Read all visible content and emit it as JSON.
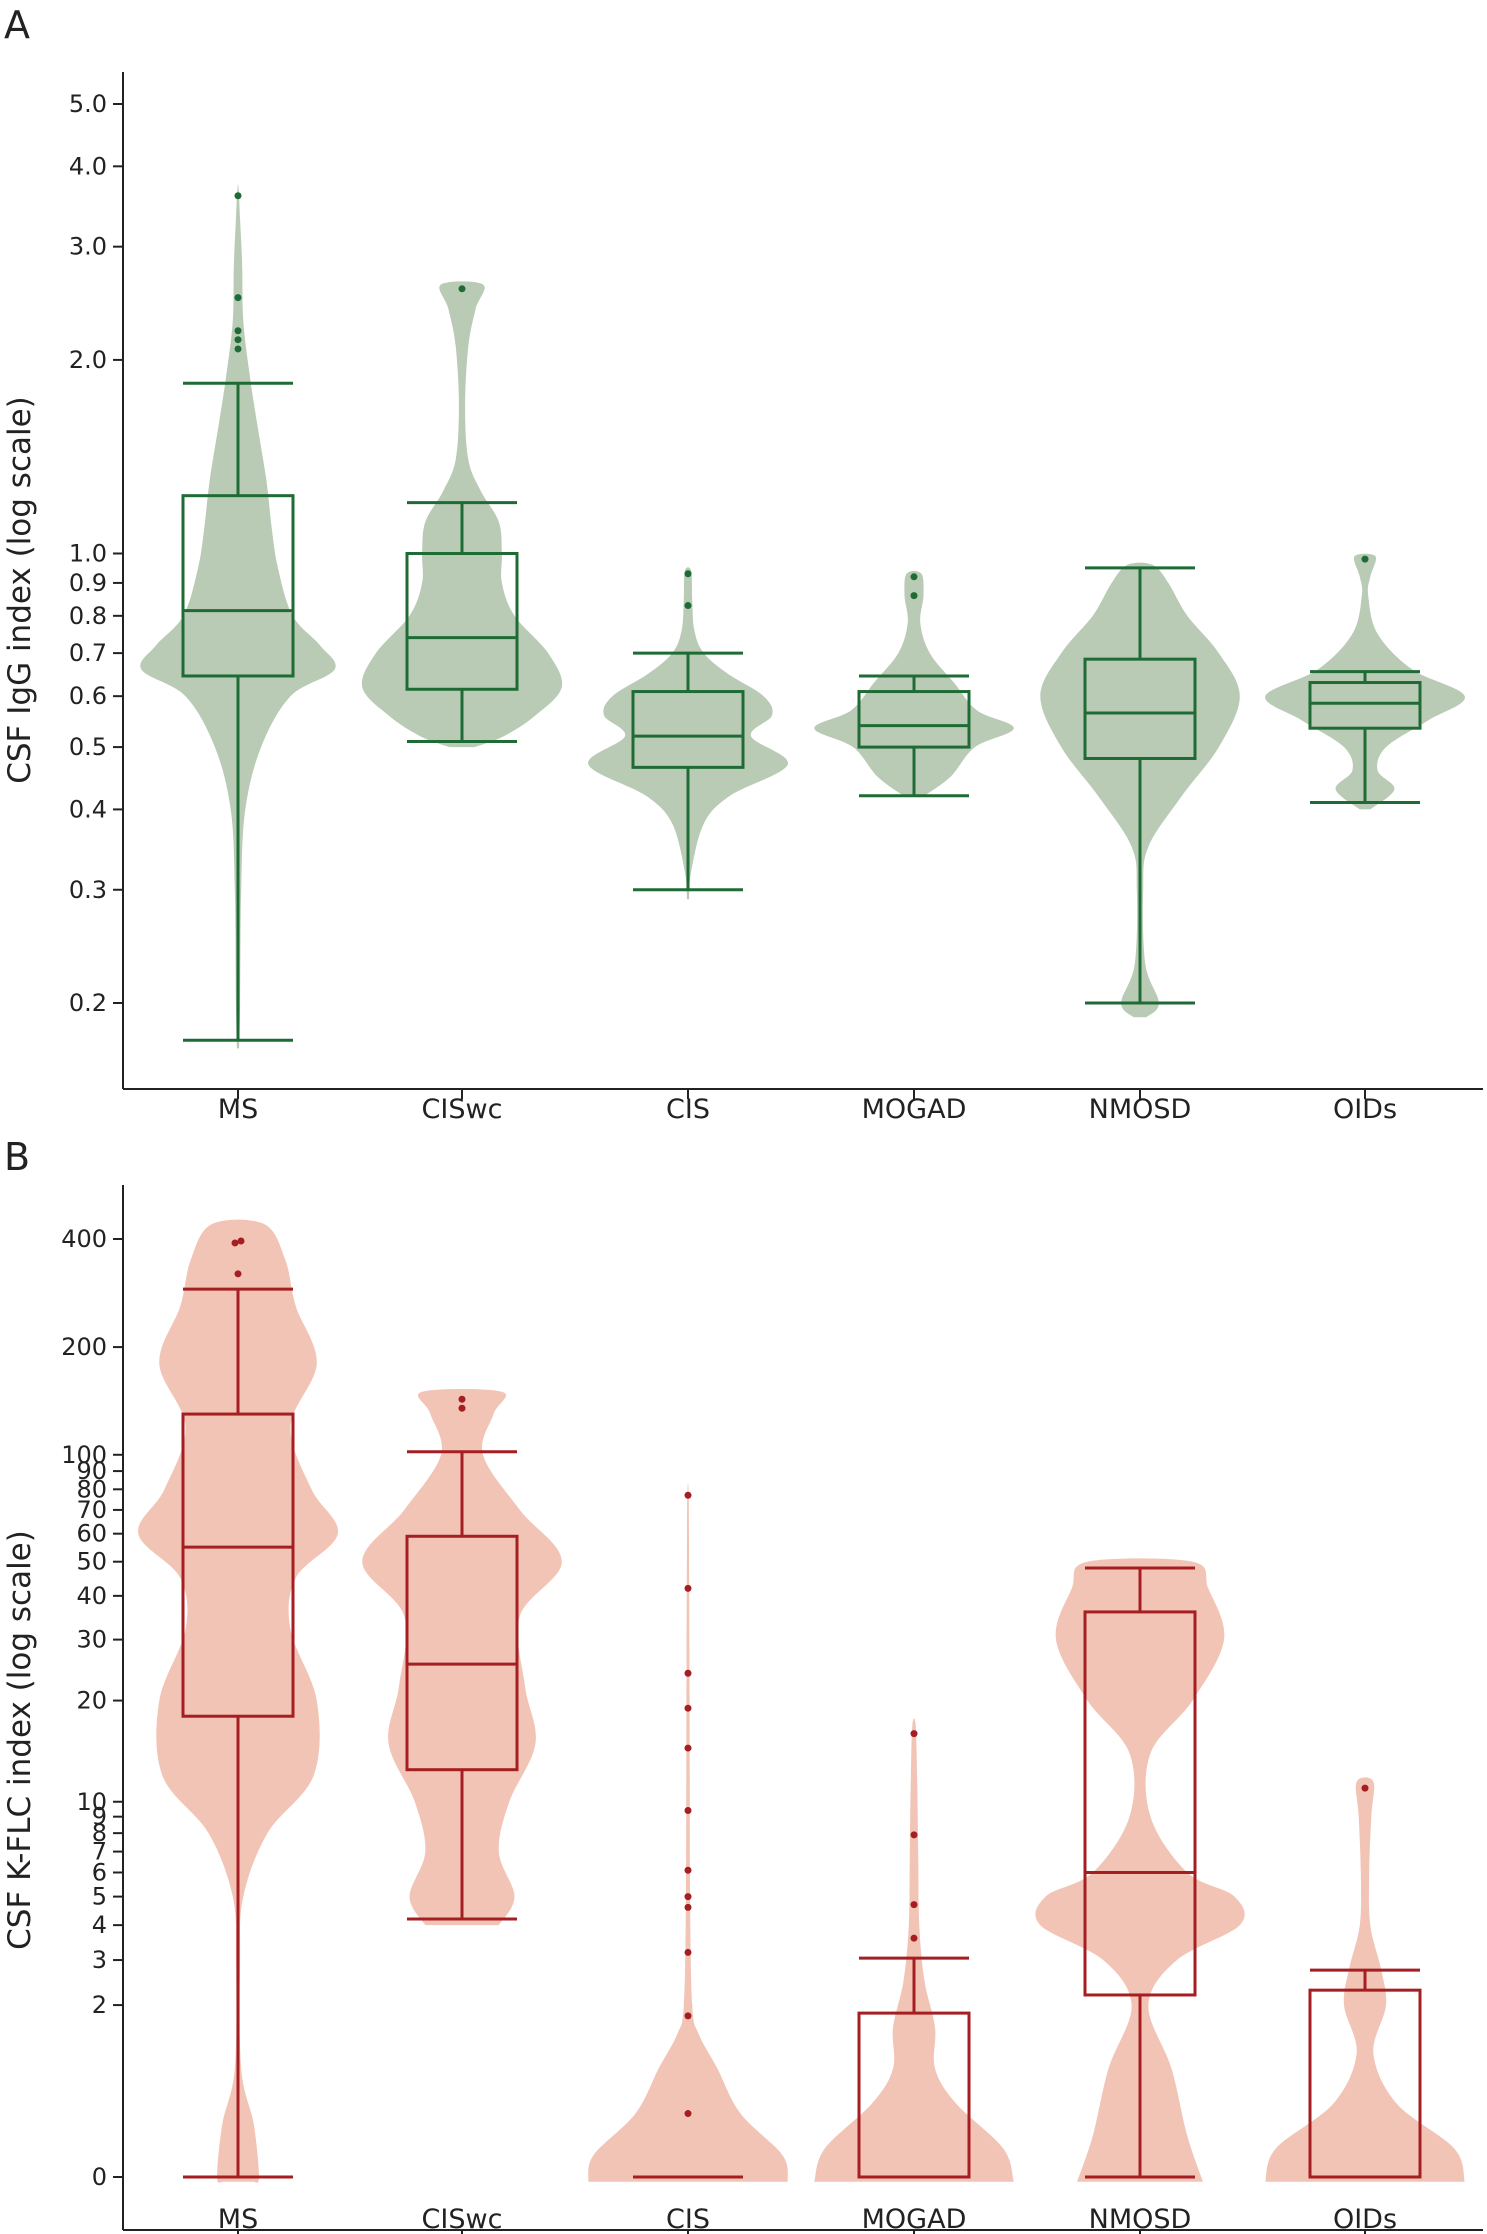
{
  "chart_data": [
    {
      "panel": "A",
      "type": "violin+box",
      "ylabel": "CSF IgG index (log scale)",
      "yscale": "log",
      "ylim": [
        0.165,
        5.5
      ],
      "yticks": [
        0.2,
        0.3,
        0.4,
        0.5,
        0.6,
        0.7,
        0.8,
        0.9,
        1.0,
        2.0,
        3.0,
        4.0,
        5.0
      ],
      "ytick_labels": [
        "0.2",
        "0.3",
        "0.4",
        "0.5",
        "0.6",
        "0.7",
        "0.8",
        "0.9",
        "1.0",
        "2.0",
        "3.0",
        "4.0",
        "5.0"
      ],
      "categories": [
        "MS",
        "CISwc",
        "CIS",
        "MOGAD",
        "NMOSD",
        "OIDs"
      ],
      "colors": {
        "fill": "#b9cbb5",
        "line": "#1e6b35",
        "point": "#1e6b35"
      },
      "boxes": [
        {
          "whisker_low": 0.175,
          "q1": 0.645,
          "median": 0.815,
          "q3": 1.23,
          "whisker_high": 1.84,
          "outliers": [
            2.08,
            2.15,
            2.22,
            2.5,
            3.6
          ]
        },
        {
          "whisker_low": 0.51,
          "q1": 0.615,
          "median": 0.74,
          "q3": 1.0,
          "whisker_high": 1.2,
          "outliers": [
            2.58
          ]
        },
        {
          "whisker_low": 0.3,
          "q1": 0.465,
          "median": 0.52,
          "q3": 0.61,
          "whisker_high": 0.7,
          "outliers": [
            0.83,
            0.93
          ]
        },
        {
          "whisker_low": 0.42,
          "q1": 0.5,
          "median": 0.54,
          "q3": 0.61,
          "whisker_high": 0.645,
          "outliers": [
            0.86,
            0.92
          ]
        },
        {
          "whisker_low": 0.2,
          "q1": 0.48,
          "median": 0.565,
          "q3": 0.685,
          "whisker_high": 0.95,
          "outliers": []
        },
        {
          "whisker_low": 0.41,
          "q1": 0.535,
          "median": 0.585,
          "q3": 0.63,
          "whisker_high": 0.655,
          "outliers": [
            0.98
          ]
        }
      ],
      "violins": [
        [
          [
            0.17,
            0.01
          ],
          [
            0.2,
            0.02
          ],
          [
            0.3,
            0.03
          ],
          [
            0.4,
            0.07
          ],
          [
            0.5,
            0.22
          ],
          [
            0.6,
            0.5
          ],
          [
            0.66,
            0.92
          ],
          [
            0.72,
            0.78
          ],
          [
            0.8,
            0.52
          ],
          [
            0.95,
            0.38
          ],
          [
            1.1,
            0.32
          ],
          [
            1.3,
            0.27
          ],
          [
            1.6,
            0.18
          ],
          [
            1.9,
            0.11
          ],
          [
            2.3,
            0.05
          ],
          [
            2.8,
            0.04
          ],
          [
            3.3,
            0.02
          ],
          [
            3.7,
            0.005
          ]
        ],
        [
          [
            0.5,
            0.12
          ],
          [
            0.52,
            0.4
          ],
          [
            0.56,
            0.7
          ],
          [
            0.62,
            0.95
          ],
          [
            0.7,
            0.82
          ],
          [
            0.8,
            0.5
          ],
          [
            0.9,
            0.38
          ],
          [
            1.0,
            0.38
          ],
          [
            1.12,
            0.35
          ],
          [
            1.25,
            0.18
          ],
          [
            1.4,
            0.06
          ],
          [
            1.7,
            0.03
          ],
          [
            2.1,
            0.06
          ],
          [
            2.4,
            0.13
          ],
          [
            2.62,
            0.2
          ]
        ],
        [
          [
            0.29,
            0.01
          ],
          [
            0.32,
            0.03
          ],
          [
            0.38,
            0.15
          ],
          [
            0.42,
            0.4
          ],
          [
            0.47,
            0.95
          ],
          [
            0.52,
            0.6
          ],
          [
            0.56,
            0.8
          ],
          [
            0.6,
            0.72
          ],
          [
            0.65,
            0.38
          ],
          [
            0.7,
            0.15
          ],
          [
            0.76,
            0.06
          ],
          [
            0.85,
            0.04
          ],
          [
            0.94,
            0.03
          ]
        ],
        [
          [
            0.42,
            0.1
          ],
          [
            0.45,
            0.35
          ],
          [
            0.5,
            0.58
          ],
          [
            0.535,
            0.95
          ],
          [
            0.57,
            0.6
          ],
          [
            0.63,
            0.38
          ],
          [
            0.7,
            0.15
          ],
          [
            0.78,
            0.06
          ],
          [
            0.86,
            0.09
          ],
          [
            0.93,
            0.07
          ]
        ],
        [
          [
            0.19,
            0.06
          ],
          [
            0.2,
            0.18
          ],
          [
            0.23,
            0.05
          ],
          [
            0.3,
            0.03
          ],
          [
            0.35,
            0.08
          ],
          [
            0.42,
            0.4
          ],
          [
            0.5,
            0.75
          ],
          [
            0.6,
            0.95
          ],
          [
            0.7,
            0.75
          ],
          [
            0.8,
            0.45
          ],
          [
            0.9,
            0.27
          ],
          [
            0.96,
            0.12
          ]
        ],
        [
          [
            0.4,
            0.05
          ],
          [
            0.43,
            0.28
          ],
          [
            0.46,
            0.12
          ],
          [
            0.5,
            0.2
          ],
          [
            0.55,
            0.6
          ],
          [
            0.6,
            0.95
          ],
          [
            0.66,
            0.45
          ],
          [
            0.75,
            0.12
          ],
          [
            0.86,
            0.03
          ],
          [
            0.92,
            0.05
          ],
          [
            0.99,
            0.1
          ]
        ]
      ]
    },
    {
      "panel": "B",
      "type": "violin+box",
      "ylabel": "CSF K-FLC index (log scale)",
      "yscale": "log(1+y)",
      "ylim": [
        -0.03,
        480
      ],
      "yticks": [
        0,
        2,
        3,
        4,
        5,
        6,
        7,
        8,
        9,
        10,
        20,
        30,
        40,
        50,
        60,
        70,
        80,
        90,
        100,
        200,
        400
      ],
      "ytick_labels": [
        "0",
        "2",
        "3",
        "4",
        "5",
        "6",
        "7",
        "8",
        "9",
        "10",
        "20",
        "30",
        "40",
        "50",
        "60",
        "70",
        "80",
        "90",
        "100",
        "200",
        "400"
      ],
      "categories": [
        "MS",
        "CISwc",
        "CIS",
        "MOGAD",
        "NMOSD",
        "OIDs"
      ],
      "colors": {
        "fill": "#f2c4b6",
        "line": "#a51e22",
        "point": "#a51e22"
      },
      "boxes": [
        {
          "whisker_low": 0,
          "q1": 18,
          "median": 55,
          "q3": 130,
          "whisker_high": 290,
          "outliers": [
            320,
            390,
            395
          ]
        },
        {
          "whisker_low": 4.2,
          "q1": 12.5,
          "median": 25.5,
          "q3": 59,
          "whisker_high": 102,
          "outliers": [
            135,
            143
          ]
        },
        {
          "whisker_low": 0,
          "q1": 0,
          "median": 0,
          "q3": 0,
          "whisker_high": 0,
          "outliers": [
            0.5,
            1.8,
            3.2,
            4.6,
            5.0,
            6.1,
            9.4,
            14.5,
            19,
            24,
            42,
            77
          ]
        },
        {
          "whisker_low": 0,
          "q1": 0,
          "median": 0,
          "q3": 1.85,
          "whisker_high": 3.05,
          "outliers": [
            3.6,
            4.7,
            7.9,
            16
          ]
        },
        {
          "whisker_low": 0,
          "q1": 2.2,
          "median": 6,
          "q3": 36,
          "whisker_high": 48,
          "outliers": []
        },
        {
          "whisker_low": 0,
          "q1": 0,
          "median": 0,
          "q3": 2.3,
          "whisker_high": 2.75,
          "outliers": [
            11
          ]
        }
      ],
      "violins": [
        [
          [
            -0.03,
            0.15
          ],
          [
            0,
            0.2
          ],
          [
            0.4,
            0.15
          ],
          [
            1,
            0.03
          ],
          [
            3,
            0.02
          ],
          [
            5,
            0.05
          ],
          [
            8,
            0.28
          ],
          [
            12,
            0.72
          ],
          [
            20,
            0.75
          ],
          [
            32,
            0.5
          ],
          [
            45,
            0.55
          ],
          [
            60,
            0.95
          ],
          [
            80,
            0.7
          ],
          [
            120,
            0.5
          ],
          [
            180,
            0.75
          ],
          [
            260,
            0.55
          ],
          [
            350,
            0.45
          ],
          [
            440,
            0.25
          ]
        ],
        [
          [
            4,
            0.35
          ],
          [
            5,
            0.5
          ],
          [
            7,
            0.35
          ],
          [
            10,
            0.45
          ],
          [
            15,
            0.7
          ],
          [
            22,
            0.6
          ],
          [
            35,
            0.55
          ],
          [
            50,
            0.95
          ],
          [
            70,
            0.55
          ],
          [
            100,
            0.2
          ],
          [
            130,
            0.3
          ],
          [
            150,
            0.38
          ]
        ],
        [
          [
            -0.03,
            0.95
          ],
          [
            0.15,
            0.9
          ],
          [
            0.5,
            0.5
          ],
          [
            1,
            0.28
          ],
          [
            1.5,
            0.1
          ],
          [
            2,
            0.04
          ],
          [
            5,
            0.02
          ],
          [
            20,
            0.015
          ],
          [
            60,
            0.01
          ],
          [
            80,
            0.005
          ]
        ],
        [
          [
            -0.03,
            0.95
          ],
          [
            0.2,
            0.85
          ],
          [
            0.6,
            0.4
          ],
          [
            1,
            0.2
          ],
          [
            1.6,
            0.2
          ],
          [
            2.5,
            0.1
          ],
          [
            4,
            0.05
          ],
          [
            7,
            0.04
          ],
          [
            12,
            0.03
          ],
          [
            17,
            0.015
          ]
        ],
        [
          [
            -0.03,
            0.6
          ],
          [
            0.3,
            0.45
          ],
          [
            1,
            0.3
          ],
          [
            2,
            0.08
          ],
          [
            3,
            0.35
          ],
          [
            4,
            0.95
          ],
          [
            5,
            0.9
          ],
          [
            6,
            0.45
          ],
          [
            9,
            0.1
          ],
          [
            14,
            0.1
          ],
          [
            20,
            0.5
          ],
          [
            30,
            0.8
          ],
          [
            42,
            0.65
          ],
          [
            50,
            0.5
          ]
        ],
        [
          [
            -0.03,
            0.95
          ],
          [
            0.2,
            0.85
          ],
          [
            0.6,
            0.3
          ],
          [
            1.2,
            0.08
          ],
          [
            2,
            0.2
          ],
          [
            2.8,
            0.15
          ],
          [
            4,
            0.05
          ],
          [
            6,
            0.04
          ],
          [
            9,
            0.06
          ],
          [
            11.5,
            0.08
          ]
        ]
      ]
    }
  ]
}
